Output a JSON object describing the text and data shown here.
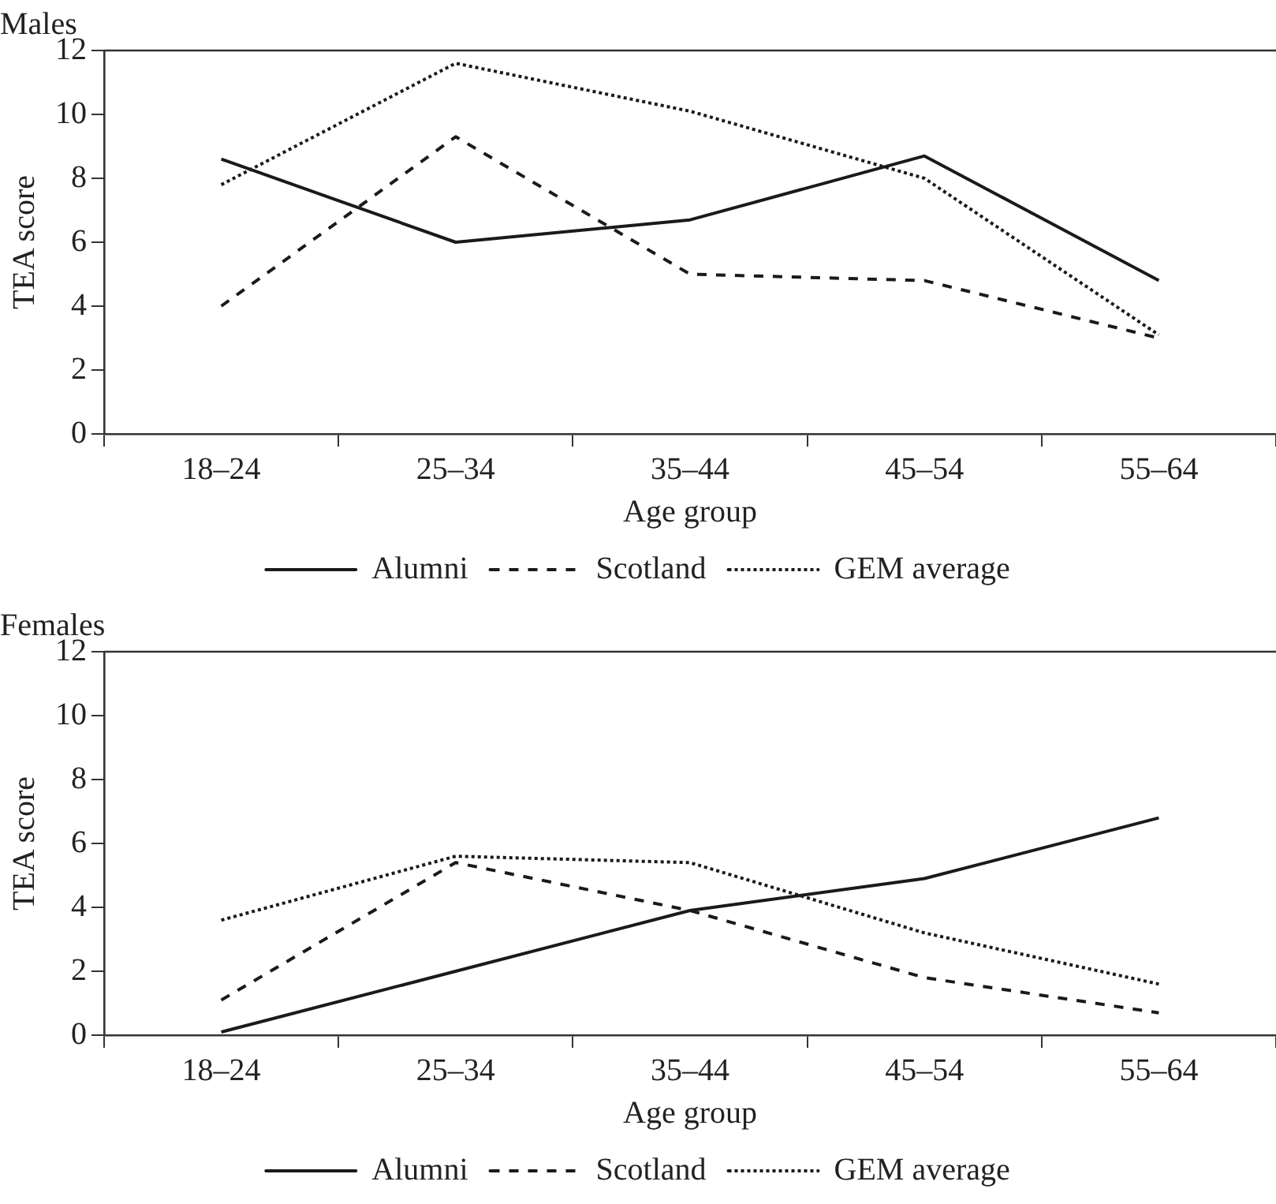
{
  "chart_data": [
    {
      "type": "line",
      "title": "Males",
      "xlabel": "Age group",
      "ylabel": "TEA score",
      "categories": [
        "18–24",
        "25–34",
        "35–44",
        "45–54",
        "55–64"
      ],
      "ylim": [
        0,
        12
      ],
      "yticks": [
        0,
        2,
        4,
        6,
        8,
        10,
        12
      ],
      "grid": false,
      "legend": "bottom",
      "marker": "none",
      "series": [
        {
          "name": "Alumni",
          "color": "#1a1a1a",
          "line_style": "solid",
          "values": [
            8.6,
            6.0,
            6.7,
            8.7,
            4.8
          ]
        },
        {
          "name": "Scotland",
          "color": "#1a1a1a",
          "line_style": "dashed",
          "values": [
            4.0,
            9.3,
            5.0,
            4.8,
            3.0
          ]
        },
        {
          "name": "GEM average",
          "color": "#1a1a1a",
          "line_style": "dotted",
          "values": [
            7.8,
            11.6,
            10.1,
            8.0,
            3.1
          ]
        }
      ]
    },
    {
      "type": "line",
      "title": "Females",
      "xlabel": "Age group",
      "ylabel": "TEA score",
      "categories": [
        "18–24",
        "25–34",
        "35–44",
        "45–54",
        "55–64"
      ],
      "ylim": [
        0,
        12
      ],
      "yticks": [
        0,
        2,
        4,
        6,
        8,
        10,
        12
      ],
      "grid": false,
      "legend": "bottom",
      "marker": "none",
      "series": [
        {
          "name": "Alumni",
          "color": "#1a1a1a",
          "line_style": "solid",
          "values": [
            0.1,
            2.0,
            3.9,
            4.9,
            6.8
          ]
        },
        {
          "name": "Scotland",
          "color": "#1a1a1a",
          "line_style": "dashed",
          "values": [
            1.1,
            5.4,
            3.9,
            1.8,
            0.7
          ]
        },
        {
          "name": "GEM average",
          "color": "#1a1a1a",
          "line_style": "dotted",
          "values": [
            3.6,
            5.6,
            5.4,
            3.2,
            1.6
          ]
        }
      ]
    }
  ]
}
